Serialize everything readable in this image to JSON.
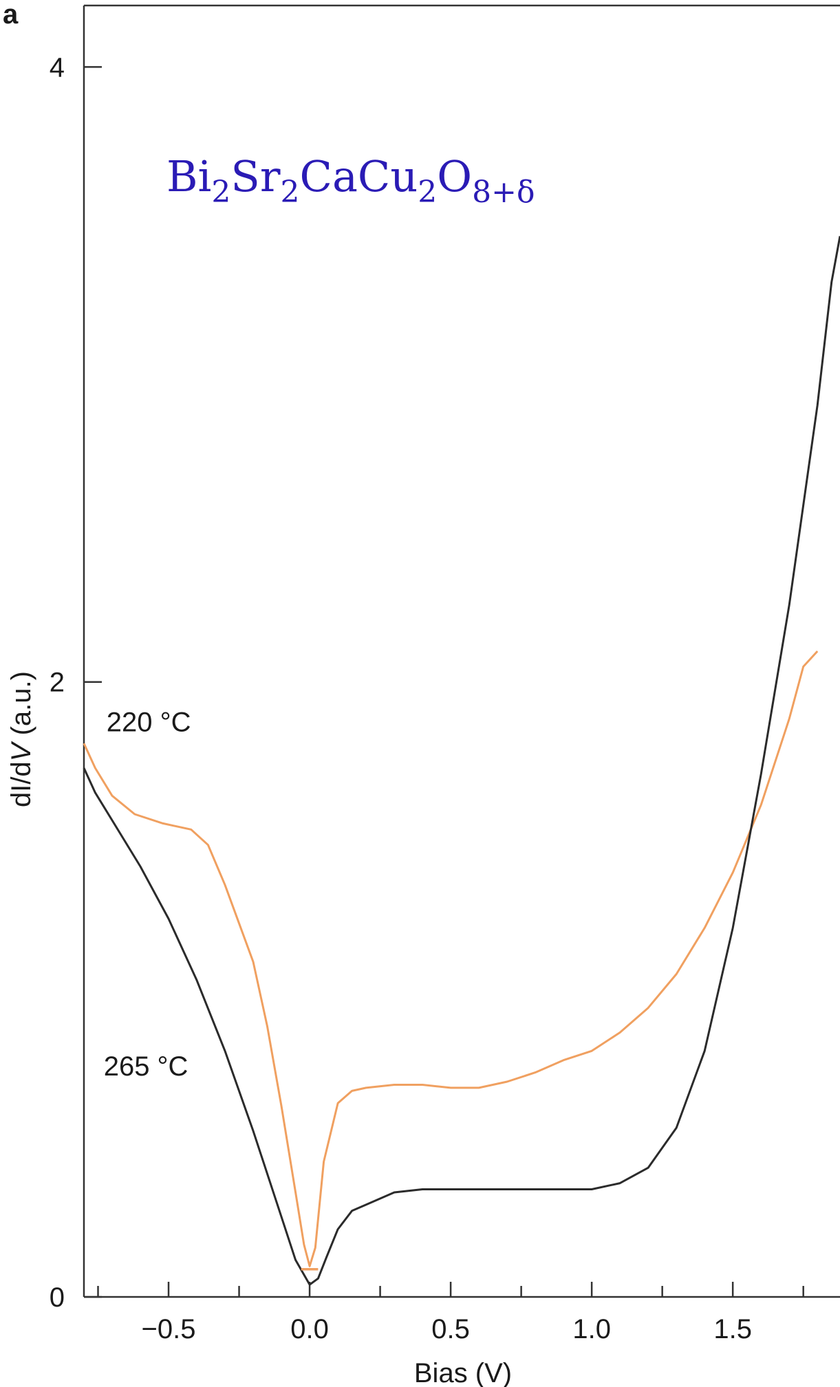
{
  "chart_data": {
    "type": "line",
    "panel_label": "a",
    "xlabel": "Bias (V)",
    "ylabel": "dI/dV (a.u.)",
    "ylabel_parts": [
      "dI/d",
      "V",
      " (a.u.)"
    ],
    "xlim": [
      -0.8,
      1.88
    ],
    "ylim": [
      0,
      4.2
    ],
    "xticks": [
      -0.5,
      0.0,
      0.5,
      1.0,
      1.5
    ],
    "xtick_labels": [
      "−0.5",
      "0.0",
      "0.5",
      "1.0",
      "1.5"
    ],
    "xminor_ticks": [
      -0.75,
      -0.5,
      -0.25,
      0.0,
      0.25,
      0.5,
      0.75,
      1.0,
      1.25,
      1.5,
      1.75
    ],
    "yticks": [
      0,
      2,
      4
    ],
    "ytick_labels": [
      "0",
      "2",
      "4"
    ],
    "grid": false,
    "legend": "none",
    "annotation": {
      "formula": [
        {
          "t": "Bi",
          "sub": false
        },
        {
          "t": "2",
          "sub": true
        },
        {
          "t": "Sr",
          "sub": false
        },
        {
          "t": "2",
          "sub": true
        },
        {
          "t": "CaCu",
          "sub": false
        },
        {
          "t": "2",
          "sub": true
        },
        {
          "t": "O",
          "sub": false
        },
        {
          "t": "8+δ",
          "sub": true
        }
      ],
      "color": "#2a1bb5"
    },
    "series": [
      {
        "name": "220 °C",
        "color": "#f0a060",
        "x": [
          -0.8,
          -0.76,
          -0.7,
          -0.62,
          -0.52,
          -0.42,
          -0.36,
          -0.3,
          -0.2,
          -0.15,
          -0.1,
          -0.05,
          -0.02,
          0.0,
          0.02,
          0.05,
          0.1,
          0.15,
          0.2,
          0.3,
          0.4,
          0.5,
          0.6,
          0.7,
          0.8,
          0.9,
          1.0,
          1.1,
          1.2,
          1.3,
          1.4,
          1.5,
          1.6,
          1.7,
          1.75,
          1.8
        ],
        "y": [
          1.8,
          1.72,
          1.63,
          1.57,
          1.54,
          1.52,
          1.47,
          1.34,
          1.09,
          0.88,
          0.62,
          0.34,
          0.17,
          0.1,
          0.16,
          0.44,
          0.63,
          0.67,
          0.68,
          0.69,
          0.69,
          0.68,
          0.68,
          0.7,
          0.73,
          0.77,
          0.8,
          0.86,
          0.94,
          1.05,
          1.2,
          1.38,
          1.6,
          1.88,
          2.05,
          2.1
        ]
      },
      {
        "name": "265 °C",
        "color": "#2b2b2b",
        "x": [
          -0.8,
          -0.76,
          -0.7,
          -0.6,
          -0.5,
          -0.4,
          -0.3,
          -0.2,
          -0.1,
          -0.05,
          0.0,
          0.03,
          0.06,
          0.1,
          0.15,
          0.2,
          0.3,
          0.4,
          0.5,
          0.6,
          0.7,
          0.8,
          0.9,
          1.0,
          1.1,
          1.2,
          1.3,
          1.4,
          1.5,
          1.6,
          1.7,
          1.8,
          1.85,
          1.88
        ],
        "y": [
          1.72,
          1.64,
          1.55,
          1.4,
          1.23,
          1.03,
          0.8,
          0.54,
          0.26,
          0.12,
          0.04,
          0.06,
          0.13,
          0.22,
          0.28,
          0.3,
          0.34,
          0.35,
          0.35,
          0.35,
          0.35,
          0.35,
          0.35,
          0.35,
          0.37,
          0.42,
          0.55,
          0.8,
          1.2,
          1.7,
          2.25,
          2.9,
          3.3,
          3.45
        ]
      }
    ],
    "series_labels": [
      {
        "text": "220 °C",
        "x": -0.72,
        "y": 1.84
      },
      {
        "text": "265 °C",
        "x": -0.73,
        "y": 0.72
      }
    ],
    "markers": [
      {
        "name": "zero-bias-marker",
        "color": "#f0a060",
        "x0": -0.03,
        "x1": 0.03,
        "y": 0.09
      }
    ]
  }
}
